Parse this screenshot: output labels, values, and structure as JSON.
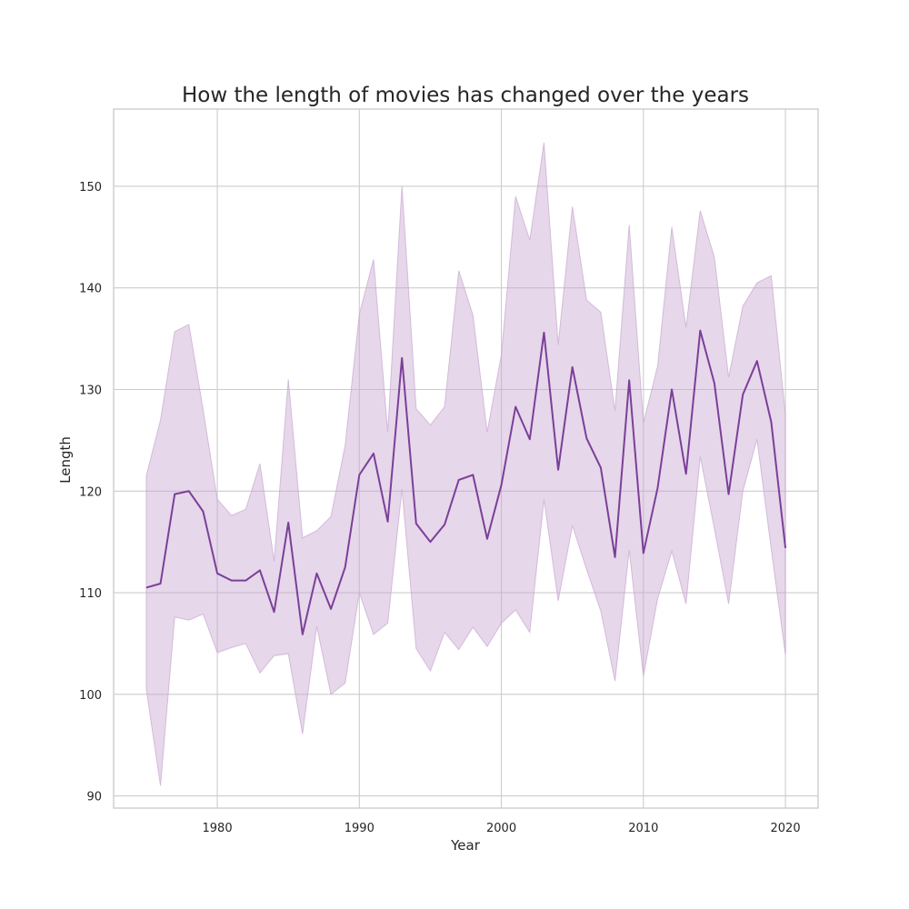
{
  "chart_data": {
    "type": "line",
    "title": "How the length of movies has changed over the years",
    "xlabel": "Year",
    "ylabel": "Length",
    "xlim": [
      1972.7,
      2022.3
    ],
    "ylim": [
      88.8,
      157.6
    ],
    "xticks": [
      1980,
      1990,
      2000,
      2010,
      2020
    ],
    "yticks": [
      90,
      100,
      110,
      120,
      130,
      140,
      150
    ],
    "grid": true,
    "legend": false,
    "line_color": "#7b3f98",
    "band_color": "#c8a7d0",
    "series": [
      {
        "x": [
          1975,
          1976,
          1977,
          1978,
          1979,
          1980,
          1981,
          1982,
          1983,
          1984,
          1985,
          1986,
          1987,
          1988,
          1989,
          1990,
          1991,
          1992,
          1993,
          1994,
          1995,
          1996,
          1997,
          1998,
          1999,
          2000,
          2001,
          2002,
          2003,
          2004,
          2005,
          2006,
          2007,
          2008,
          2009,
          2010,
          2011,
          2012,
          2013,
          2014,
          2015,
          2016,
          2017,
          2018,
          2019,
          2020
        ],
        "values": [
          110.5,
          110.9,
          119.7,
          120.0,
          118.0,
          111.9,
          111.2,
          111.2,
          112.2,
          108.1,
          116.9,
          105.9,
          111.9,
          108.4,
          112.5,
          121.6,
          123.7,
          117.0,
          133.1,
          116.8,
          115.0,
          116.7,
          121.1,
          121.6,
          115.3,
          120.6,
          128.3,
          125.1,
          135.6,
          122.1,
          132.2,
          125.2,
          122.3,
          113.5,
          130.9,
          113.9,
          120.3,
          130.0,
          121.7,
          135.8,
          130.6,
          119.7,
          129.5,
          132.8,
          126.8,
          114.4
        ],
        "upper": [
          121.5,
          127.0,
          135.7,
          136.4,
          128.0,
          119.2,
          117.6,
          118.2,
          122.7,
          113.1,
          131.0,
          115.4,
          116.1,
          117.5,
          124.5,
          137.4,
          142.8,
          125.8,
          150.0,
          128.1,
          126.5,
          128.3,
          141.7,
          137.3,
          125.8,
          133.4,
          149.0,
          144.7,
          154.3,
          134.4,
          148.0,
          138.8,
          137.6,
          127.9,
          146.2,
          126.7,
          132.3,
          146.0,
          136.1,
          147.6,
          143.0,
          131.2,
          138.2,
          140.5,
          141.2,
          127.5
        ],
        "lower": [
          100.5,
          91.0,
          107.6,
          107.3,
          107.9,
          104.1,
          104.6,
          105.0,
          102.1,
          103.8,
          104.0,
          96.1,
          106.7,
          100.0,
          101.1,
          110.0,
          105.9,
          107.0,
          120.2,
          104.5,
          102.3,
          106.1,
          104.4,
          106.6,
          104.7,
          107.0,
          108.3,
          106.1,
          119.2,
          109.2,
          116.6,
          112.3,
          108.2,
          101.3,
          114.2,
          101.8,
          109.4,
          114.1,
          108.9,
          123.4,
          116.3,
          108.9,
          120.0,
          125.1,
          114.3,
          103.9
        ]
      }
    ]
  }
}
